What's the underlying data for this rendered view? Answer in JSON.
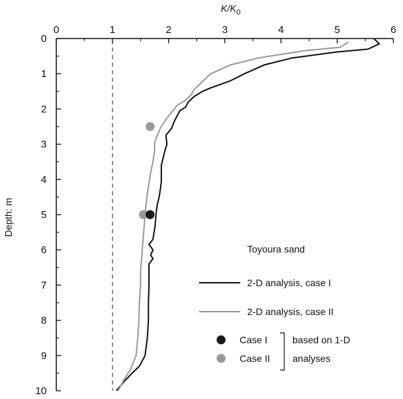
{
  "chart_data": {
    "type": "line",
    "xlabel": {
      "main": "K/K",
      "sub": "0"
    },
    "ylabel": "Depth: m",
    "xlim": [
      0,
      6
    ],
    "ylim": [
      0,
      10
    ],
    "y_inverted": true,
    "x_axis_position": "top",
    "xticks": [
      "0",
      "1",
      "2",
      "3",
      "4",
      "5",
      "6"
    ],
    "yticks": [
      "0",
      "1",
      "2",
      "3",
      "4",
      "5",
      "6",
      "7",
      "8",
      "9",
      "10"
    ],
    "grid": false,
    "reference_line": {
      "x": 1,
      "style": "dashed"
    },
    "annotation": "Toyoura sand",
    "series": [
      {
        "name": "2-D analysis, case I",
        "color": "#111111",
        "points": [
          [
            5.65,
            0.0
          ],
          [
            5.75,
            0.15
          ],
          [
            5.55,
            0.3
          ],
          [
            5.0,
            0.38
          ],
          [
            4.2,
            0.55
          ],
          [
            3.7,
            0.75
          ],
          [
            3.35,
            1.0
          ],
          [
            3.1,
            1.2
          ],
          [
            2.75,
            1.4
          ],
          [
            2.6,
            1.5
          ],
          [
            2.45,
            1.65
          ],
          [
            2.35,
            1.8
          ],
          [
            2.3,
            1.95
          ],
          [
            2.2,
            2.05
          ],
          [
            2.15,
            2.2
          ],
          [
            2.1,
            2.35
          ],
          [
            2.05,
            2.55
          ],
          [
            1.95,
            2.75
          ],
          [
            1.97,
            3.0
          ],
          [
            1.93,
            3.2
          ],
          [
            1.9,
            3.4
          ],
          [
            1.87,
            3.6
          ],
          [
            1.87,
            3.8
          ],
          [
            1.87,
            4.05
          ],
          [
            1.85,
            4.3
          ],
          [
            1.83,
            4.5
          ],
          [
            1.8,
            4.7
          ],
          [
            1.78,
            4.9
          ],
          [
            1.77,
            5.1
          ],
          [
            1.76,
            5.3
          ],
          [
            1.74,
            5.5
          ],
          [
            1.72,
            5.7
          ],
          [
            1.65,
            5.85
          ],
          [
            1.72,
            6.0
          ],
          [
            1.68,
            6.15
          ],
          [
            1.72,
            6.25
          ],
          [
            1.65,
            6.4
          ],
          [
            1.65,
            6.7
          ],
          [
            1.65,
            7.0
          ],
          [
            1.64,
            7.5
          ],
          [
            1.64,
            8.0
          ],
          [
            1.62,
            8.5
          ],
          [
            1.58,
            9.0
          ],
          [
            1.48,
            9.3
          ],
          [
            1.35,
            9.5
          ],
          [
            1.2,
            9.75
          ],
          [
            1.07,
            10.0
          ]
        ]
      },
      {
        "name": "2-D analysis, case II",
        "color": "#999999",
        "points": [
          [
            5.2,
            0.1
          ],
          [
            5.05,
            0.25
          ],
          [
            4.4,
            0.35
          ],
          [
            3.6,
            0.55
          ],
          [
            3.1,
            0.75
          ],
          [
            2.75,
            1.0
          ],
          [
            2.55,
            1.3
          ],
          [
            2.45,
            1.45
          ],
          [
            2.4,
            1.6
          ],
          [
            2.3,
            1.75
          ],
          [
            2.15,
            1.9
          ],
          [
            2.05,
            2.1
          ],
          [
            1.95,
            2.3
          ],
          [
            1.85,
            2.55
          ],
          [
            1.8,
            2.75
          ],
          [
            1.75,
            2.95
          ],
          [
            1.75,
            3.2
          ],
          [
            1.72,
            3.5
          ],
          [
            1.68,
            3.8
          ],
          [
            1.65,
            4.1
          ],
          [
            1.62,
            4.4
          ],
          [
            1.6,
            4.7
          ],
          [
            1.58,
            5.0
          ],
          [
            1.56,
            5.4
          ],
          [
            1.54,
            5.8
          ],
          [
            1.52,
            6.2
          ],
          [
            1.5,
            6.6
          ],
          [
            1.5,
            7.0
          ],
          [
            1.48,
            7.5
          ],
          [
            1.47,
            8.0
          ],
          [
            1.45,
            8.5
          ],
          [
            1.42,
            9.0
          ],
          [
            1.32,
            9.4
          ],
          [
            1.2,
            9.7
          ],
          [
            1.1,
            10.0
          ]
        ]
      }
    ],
    "markers": [
      {
        "name": "Case I",
        "color": "#1a1a1a",
        "points": [
          [
            1.67,
            5.0
          ]
        ]
      },
      {
        "name": "Case II",
        "color": "#999999",
        "points": [
          [
            1.67,
            2.5
          ],
          [
            1.55,
            5.0
          ]
        ]
      }
    ],
    "legend": {
      "placement": "bottom-right",
      "line_entries": [
        "2-D analysis, case I",
        "2-D analysis, case II"
      ],
      "marker_entries": [
        "Case I",
        "Case II"
      ],
      "bracket_text": [
        "based on 1-D",
        "analyses"
      ]
    }
  }
}
